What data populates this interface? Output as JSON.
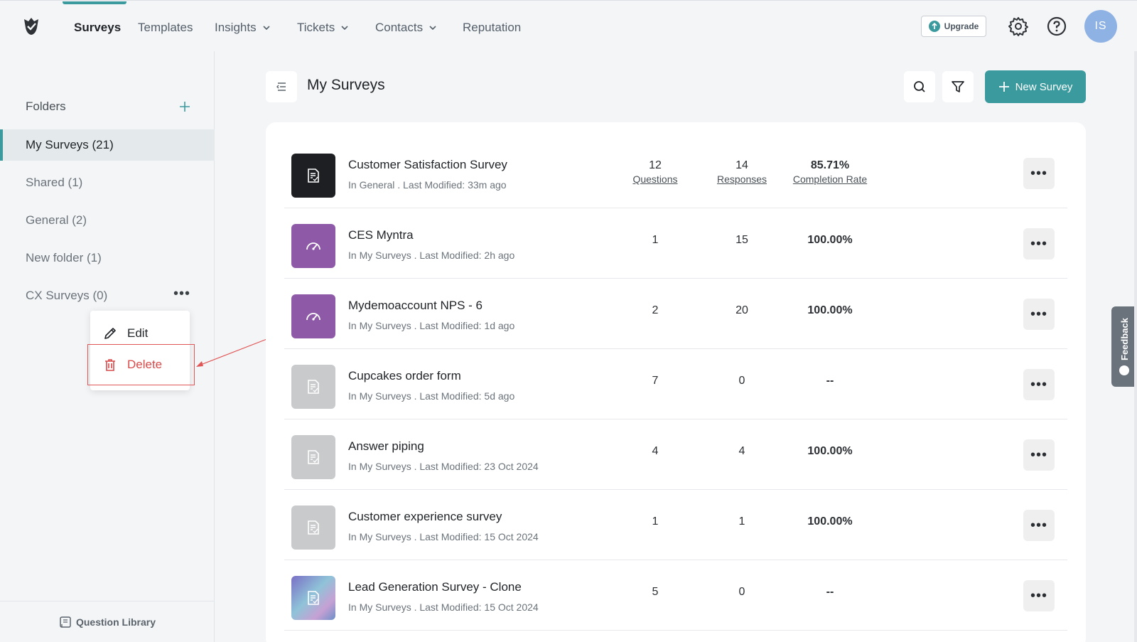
{
  "nav": {
    "items": [
      {
        "label": "Surveys",
        "active": true,
        "dropdown": false
      },
      {
        "label": "Templates",
        "active": false,
        "dropdown": false
      },
      {
        "label": "Insights",
        "active": false,
        "dropdown": true
      },
      {
        "label": "Tickets",
        "active": false,
        "dropdown": true
      },
      {
        "label": "Contacts",
        "active": false,
        "dropdown": true
      },
      {
        "label": "Reputation",
        "active": false,
        "dropdown": false
      }
    ],
    "upgrade_label": "Upgrade",
    "avatar_initials": "IS"
  },
  "sidebar": {
    "folders_label": "Folders",
    "folders": [
      {
        "label": "My Surveys (21)",
        "active": true
      },
      {
        "label": "Shared (1)",
        "active": false
      },
      {
        "label": "General (2)",
        "active": false
      },
      {
        "label": "New folder (1)",
        "active": false
      },
      {
        "label": "CX Surveys (0)",
        "active": false
      }
    ],
    "question_library_label": "Question Library"
  },
  "context_menu": {
    "edit_label": "Edit",
    "delete_label": "Delete"
  },
  "main": {
    "title": "My Surveys",
    "new_survey_label": "New Survey",
    "surveys": [
      {
        "title": "Customer Satisfaction Survey",
        "sub": "In General . Last Modified: 33m ago",
        "questions": "12",
        "responses": "14",
        "completion": "85.71%",
        "thumb": "dark",
        "icon": "doc"
      },
      {
        "title": "CES Myntra",
        "sub": "In My Surveys . Last Modified: 2h ago",
        "questions": "1",
        "responses": "15",
        "completion": "100.00%",
        "thumb": "purple",
        "icon": "gauge"
      },
      {
        "title": "Mydemoaccount NPS - 6",
        "sub": "In My Surveys . Last Modified: 1d ago",
        "questions": "2",
        "responses": "20",
        "completion": "100.00%",
        "thumb": "purple",
        "icon": "gauge"
      },
      {
        "title": "Cupcakes order form",
        "sub": "In My Surveys . Last Modified: 5d ago",
        "questions": "7",
        "responses": "0",
        "completion": "--",
        "thumb": "grey",
        "icon": "doc"
      },
      {
        "title": "Answer piping",
        "sub": "In My Surveys . Last Modified: 23 Oct 2024",
        "questions": "4",
        "responses": "4",
        "completion": "100.00%",
        "thumb": "grey",
        "icon": "doc"
      },
      {
        "title": "Customer experience survey",
        "sub": "In My Surveys . Last Modified: 15 Oct 2024",
        "questions": "1",
        "responses": "1",
        "completion": "100.00%",
        "thumb": "grey",
        "icon": "doc"
      },
      {
        "title": "Lead Generation Survey - Clone",
        "sub": "In My Surveys . Last Modified: 15 Oct 2024",
        "questions": "5",
        "responses": "0",
        "completion": "--",
        "thumb": "gradient",
        "icon": "doc"
      }
    ],
    "stat_labels": {
      "questions": "Questions",
      "responses": "Responses",
      "completion": "Completion Rate"
    }
  },
  "feedback_label": "Feedback",
  "colors": {
    "accent": "#3a9a9e",
    "danger": "#d94a4a",
    "purple": "#8e5aa8",
    "dark": "#1d1f22",
    "grey": "#c8cacc"
  }
}
